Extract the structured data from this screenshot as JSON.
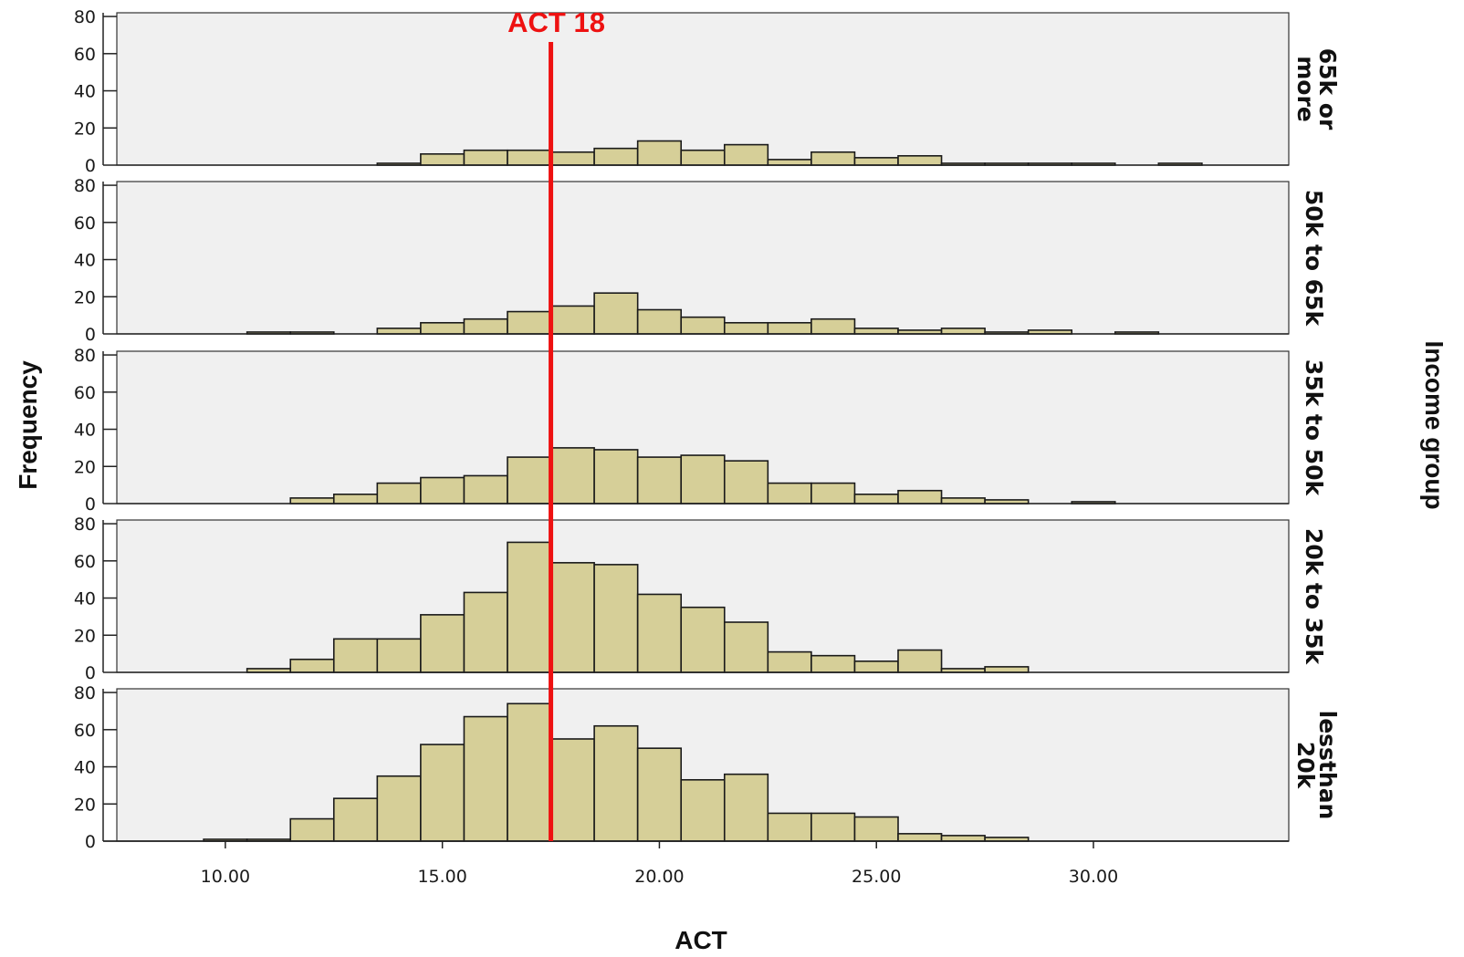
{
  "chart_data": {
    "type": "bar",
    "subtype": "faceted-histogram",
    "xlabel": "ACT",
    "ylabel": "Frequency",
    "facet_label": "Income group",
    "xlim": [
      7.5,
      34.5
    ],
    "ylim": [
      0,
      82
    ],
    "x_ticks": [
      10,
      15,
      20,
      25,
      30
    ],
    "x_tick_labels": [
      "10.00",
      "15.00",
      "20.00",
      "25.00",
      "30.00"
    ],
    "y_ticks": [
      0,
      20,
      40,
      60,
      80
    ],
    "y_tick_labels": [
      "0",
      "20",
      "40",
      "60",
      "80"
    ],
    "bin_width": 1,
    "bin_starts": [
      9.5,
      10.5,
      11.5,
      12.5,
      13.5,
      14.5,
      15.5,
      16.5,
      17.5,
      18.5,
      19.5,
      20.5,
      21.5,
      22.5,
      23.5,
      24.5,
      25.5,
      26.5,
      27.5,
      28.5,
      29.5,
      30.5,
      31.5
    ],
    "panel_colors": {
      "background": "#f0f0f0",
      "bar_fill": "#d6cf98",
      "bar_stroke": "#1a1a1a"
    },
    "reference_line": {
      "x": 17.5,
      "label": "ACT 18",
      "color": "#ee1111"
    },
    "series": [
      {
        "name": "65k or more",
        "label_lines": [
          "65k or",
          "more"
        ],
        "values": [
          0,
          0,
          0,
          0,
          1,
          6,
          8,
          8,
          7,
          9,
          13,
          8,
          11,
          3,
          7,
          4,
          5,
          1,
          1,
          1,
          1,
          0,
          1
        ]
      },
      {
        "name": "50k to 65k",
        "label_lines": [
          "50k to 65k"
        ],
        "values": [
          0,
          1,
          1,
          0,
          3,
          6,
          8,
          12,
          15,
          22,
          13,
          9,
          6,
          6,
          8,
          3,
          2,
          3,
          1,
          2,
          0,
          1,
          0
        ]
      },
      {
        "name": "35k to 50k",
        "label_lines": [
          "35k to 50k"
        ],
        "values": [
          0,
          0,
          3,
          5,
          11,
          14,
          15,
          25,
          30,
          29,
          25,
          26,
          23,
          11,
          11,
          5,
          7,
          3,
          2,
          0,
          1,
          0,
          0
        ]
      },
      {
        "name": "20k to 35k",
        "label_lines": [
          "20k to 35k"
        ],
        "values": [
          0,
          2,
          7,
          18,
          18,
          31,
          43,
          70,
          59,
          58,
          42,
          35,
          27,
          11,
          9,
          6,
          12,
          2,
          3,
          0,
          0,
          0,
          0
        ]
      },
      {
        "name": "lessthan 20k",
        "label_lines": [
          "lessthan",
          "20k"
        ],
        "values": [
          1,
          1,
          12,
          23,
          35,
          52,
          67,
          74,
          55,
          62,
          50,
          33,
          36,
          15,
          15,
          13,
          4,
          3,
          2,
          0,
          0,
          0,
          0
        ]
      }
    ]
  }
}
